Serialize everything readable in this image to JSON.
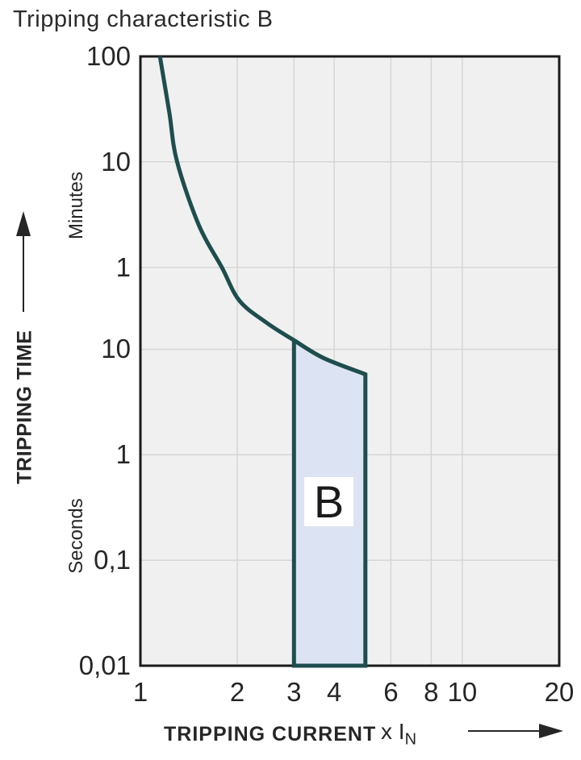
{
  "page_title": "Tripping characteristic B",
  "chart_data": {
    "type": "line",
    "title": "Tripping characteristic B",
    "scale": "log-log",
    "x_axis": {
      "label": "TRIPPING CURRENT",
      "unit": "x I",
      "unit_sub": "N",
      "range": [
        1,
        20
      ],
      "ticks": [
        1,
        2,
        3,
        4,
        6,
        8,
        10,
        20
      ],
      "gridlines": [
        2,
        3,
        4,
        6,
        8,
        10
      ]
    },
    "y_axis": {
      "label": "TRIPPING TIME",
      "unit_top": "Minutes",
      "unit_bottom": "Seconds",
      "range_seconds": [
        6000,
        0.01
      ],
      "ticks": [
        {
          "label": "100",
          "seconds": 6000,
          "unit": "min"
        },
        {
          "label": "10",
          "seconds": 600,
          "unit": "min"
        },
        {
          "label": "1",
          "seconds": 60,
          "unit": "min"
        },
        {
          "label": "10",
          "seconds": 10,
          "unit": "s"
        },
        {
          "label": "1",
          "seconds": 1,
          "unit": "s"
        },
        {
          "label": "0,1",
          "seconds": 0.1,
          "unit": "s"
        },
        {
          "label": "0,01",
          "seconds": 0.01,
          "unit": "s"
        }
      ],
      "gridlines_seconds": [
        600,
        60,
        10,
        1,
        0.1
      ]
    },
    "curve": {
      "name": "thermal-trip-curve",
      "points_x_t": [
        [
          1.15,
          6000
        ],
        [
          1.23,
          1750
        ],
        [
          1.3,
          600
        ],
        [
          1.52,
          150
        ],
        [
          1.79,
          60
        ],
        [
          2.03,
          29
        ],
        [
          2.46,
          18
        ],
        [
          3.0,
          12.2
        ],
        [
          3.7,
          8.3
        ],
        [
          5.0,
          5.8
        ]
      ]
    },
    "band": {
      "label": "B",
      "x_range": [
        3,
        5
      ],
      "t_bottom": 0.01,
      "top_points_x_t": [
        [
          3,
          12.2
        ],
        [
          3.7,
          8.3
        ],
        [
          5,
          5.8
        ]
      ]
    },
    "colors": {
      "curve": "#1e4d4d",
      "band_fill": "#dce3f2",
      "plot_bg": "#f0f0f0",
      "grid": "#d6d6d6",
      "border": "#1a1a1a",
      "text": "#262626"
    }
  }
}
